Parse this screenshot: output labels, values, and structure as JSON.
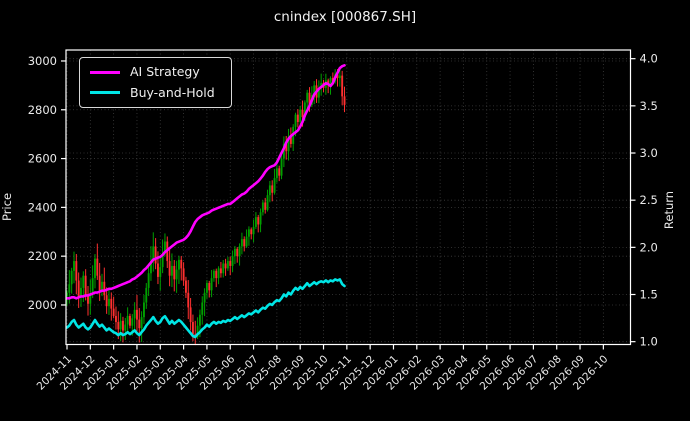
{
  "chart": {
    "title": "cnindex [000867.SH]",
    "left_axis_label": "Price",
    "right_axis_label": "Return",
    "legend": {
      "items": [
        {
          "label": "AI Strategy",
          "color": "#ff00ff"
        },
        {
          "label": "Buy-and-Hold",
          "color": "#00e5e5"
        }
      ]
    },
    "colors": {
      "background": "#000000",
      "text": "#eaeaea",
      "grid": "#3c3c3c",
      "spine": "#ffffff",
      "candle_up": "#00a000",
      "candle_down": "#ff3030",
      "ai_line": "#ff00ff",
      "hold_line": "#00e5e5"
    }
  },
  "chart_data": {
    "type": "candlestick+line",
    "title": "cnindex [000867.SH]",
    "grid": true,
    "legend_position": "upper left",
    "x_tick_labels": [
      "2024-11",
      "2024-12",
      "2025-01",
      "2025-02",
      "2025-03",
      "2025-04",
      "2025-05",
      "2025-06",
      "2025-07",
      "2025-08",
      "2025-09",
      "2025-10",
      "2025-11",
      "2025-12",
      "2026-01",
      "2026-02",
      "2026-03",
      "2026-04",
      "2026-05",
      "2026-06",
      "2026-07",
      "2026-08",
      "2026-09",
      "2026-10"
    ],
    "left_axis": {
      "label": "Price",
      "ticks": [
        2000,
        2200,
        2400,
        2600,
        2800,
        3000
      ],
      "range": [
        1838,
        3045
      ]
    },
    "right_axis": {
      "label": "Return",
      "ticks": [
        1.0,
        1.5,
        2.0,
        2.5,
        3.0,
        3.5,
        4.0
      ],
      "range": [
        0.97,
        4.092
      ]
    },
    "price_candles": {
      "axis": "price",
      "points_per_month": 10,
      "start_month": "2024-11",
      "end_month": "2025-11",
      "first_open": 2035,
      "closes": [
        2050,
        2085,
        2140,
        2180,
        2100,
        2035,
        2070,
        2120,
        2040,
        2005,
        2045,
        2110,
        2190,
        2120,
        2060,
        2095,
        2040,
        1995,
        2025,
        1985,
        1955,
        1930,
        1900,
        1935,
        1895,
        1920,
        1955,
        1915,
        1945,
        1980,
        1940,
        1905,
        1950,
        2010,
        2070,
        2130,
        2180,
        2240,
        2170,
        2115,
        2155,
        2210,
        2260,
        2180,
        2120,
        2160,
        2105,
        2145,
        2185,
        2150,
        2100,
        2050,
        1990,
        1930,
        1880,
        1870,
        1915,
        1960,
        2010,
        2050,
        2090,
        2060,
        2110,
        2140,
        2110,
        2150,
        2130,
        2170,
        2150,
        2180,
        2160,
        2200,
        2230,
        2200,
        2240,
        2270,
        2240,
        2280,
        2310,
        2290,
        2320,
        2360,
        2330,
        2380,
        2420,
        2390,
        2450,
        2490,
        2460,
        2520,
        2560,
        2530,
        2600,
        2660,
        2630,
        2690,
        2660,
        2730,
        2780,
        2750,
        2800,
        2770,
        2830,
        2870,
        2820,
        2860,
        2900,
        2850,
        2890,
        2910,
        2890,
        2920,
        2900,
        2930,
        2915,
        2945,
        2930,
        2940,
        2855,
        2820
      ]
    },
    "series": [
      {
        "name": "AI Strategy",
        "axis": "return",
        "color": "#ff00ff",
        "values": [
          1.46,
          1.46,
          1.47,
          1.47,
          1.46,
          1.47,
          1.48,
          1.48,
          1.49,
          1.49,
          1.5,
          1.51,
          1.52,
          1.52,
          1.53,
          1.54,
          1.54,
          1.55,
          1.56,
          1.56,
          1.57,
          1.58,
          1.59,
          1.6,
          1.61,
          1.62,
          1.63,
          1.64,
          1.66,
          1.67,
          1.69,
          1.71,
          1.73,
          1.76,
          1.78,
          1.81,
          1.84,
          1.87,
          1.88,
          1.89,
          1.9,
          1.92,
          1.95,
          1.97,
          1.99,
          2.01,
          2.03,
          2.05,
          2.06,
          2.07,
          2.08,
          2.1,
          2.13,
          2.17,
          2.22,
          2.27,
          2.3,
          2.32,
          2.34,
          2.35,
          2.36,
          2.37,
          2.39,
          2.4,
          2.41,
          2.42,
          2.43,
          2.44,
          2.45,
          2.46,
          2.46,
          2.48,
          2.5,
          2.52,
          2.54,
          2.56,
          2.57,
          2.59,
          2.62,
          2.64,
          2.66,
          2.68,
          2.7,
          2.73,
          2.76,
          2.8,
          2.83,
          2.85,
          2.86,
          2.87,
          2.9,
          2.95,
          3.0,
          3.05,
          3.11,
          3.15,
          3.18,
          3.2,
          3.22,
          3.24,
          3.28,
          3.33,
          3.4,
          3.45,
          3.5,
          3.56,
          3.62,
          3.65,
          3.68,
          3.7,
          3.72,
          3.74,
          3.73,
          3.71,
          3.74,
          3.8,
          3.85,
          3.9,
          3.92,
          3.93
        ]
      },
      {
        "name": "Buy-and-Hold",
        "axis": "return",
        "color": "#00e5e5",
        "values": [
          1.15,
          1.17,
          1.21,
          1.23,
          1.18,
          1.15,
          1.17,
          1.19,
          1.15,
          1.13,
          1.15,
          1.19,
          1.23,
          1.19,
          1.16,
          1.18,
          1.15,
          1.12,
          1.14,
          1.12,
          1.1,
          1.09,
          1.07,
          1.09,
          1.07,
          1.08,
          1.1,
          1.08,
          1.1,
          1.12,
          1.09,
          1.07,
          1.1,
          1.13,
          1.17,
          1.2,
          1.23,
          1.26,
          1.22,
          1.19,
          1.21,
          1.25,
          1.27,
          1.23,
          1.19,
          1.22,
          1.19,
          1.21,
          1.23,
          1.21,
          1.18,
          1.15,
          1.12,
          1.09,
          1.06,
          1.05,
          1.08,
          1.1,
          1.13,
          1.15,
          1.18,
          1.16,
          1.19,
          1.21,
          1.19,
          1.21,
          1.2,
          1.22,
          1.21,
          1.23,
          1.22,
          1.24,
          1.26,
          1.24,
          1.26,
          1.28,
          1.26,
          1.28,
          1.3,
          1.29,
          1.31,
          1.33,
          1.31,
          1.34,
          1.36,
          1.35,
          1.38,
          1.4,
          1.39,
          1.42,
          1.44,
          1.43,
          1.46,
          1.5,
          1.48,
          1.52,
          1.5,
          1.54,
          1.57,
          1.55,
          1.58,
          1.56,
          1.59,
          1.62,
          1.59,
          1.61,
          1.63,
          1.61,
          1.63,
          1.64,
          1.63,
          1.65,
          1.63,
          1.65,
          1.64,
          1.66,
          1.65,
          1.66,
          1.61,
          1.59
        ]
      }
    ]
  }
}
